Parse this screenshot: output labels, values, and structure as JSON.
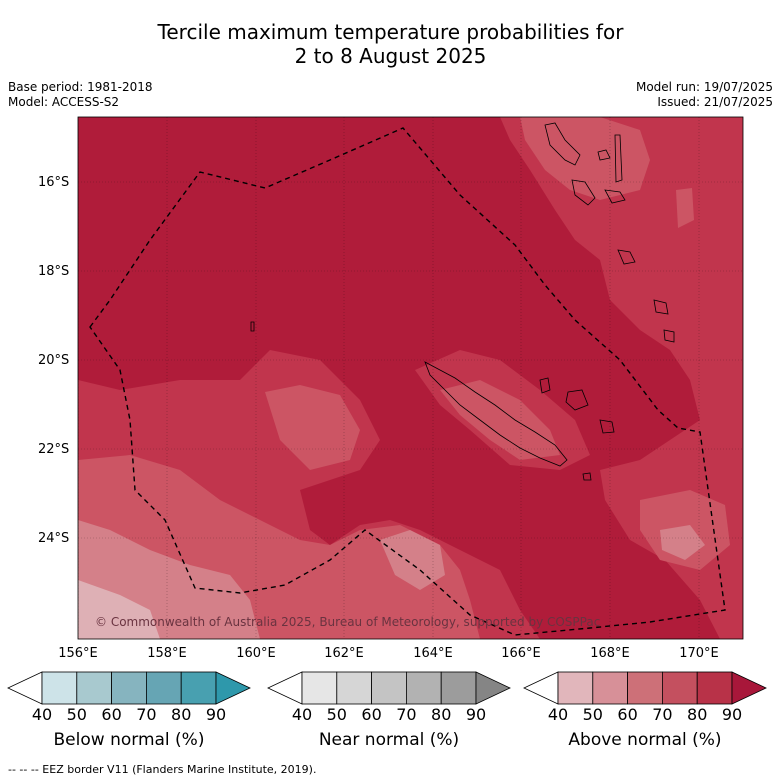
{
  "title": {
    "line1": "Tercile maximum temperature probabilities for",
    "line2": "2 to 8 August 2025"
  },
  "meta_left": {
    "base_period": "Base period: 1981-2018",
    "model": "Model: ACCESS-S2"
  },
  "meta_right": {
    "model_run": "Model run: 19/07/2025",
    "issued": "Issued: 21/07/2025"
  },
  "map": {
    "lat_labels": [
      "16°S",
      "18°S",
      "20°S",
      "22°S",
      "24°S"
    ],
    "lon_labels": [
      "156°E",
      "158°E",
      "160°E",
      "162°E",
      "164°E",
      "166°E",
      "168°E",
      "170°E"
    ],
    "copyright": "© Commonwealth of Australia 2025, Bureau of Meteorology, supported by COSPPac",
    "colors": {
      "above_80_90": "#b01c3a",
      "above_70_80": "#c1354d",
      "above_60_70": "#cc5564",
      "above_50_60": "#d48089",
      "above_40_50": "#deb0b5"
    }
  },
  "colorbars": [
    {
      "title": "Below normal (%)",
      "ticks": [
        "40",
        "50",
        "60",
        "70",
        "80",
        "90"
      ],
      "colors": [
        "#cde3e8",
        "#a8c9cf",
        "#86b4bf",
        "#66a5b4",
        "#48a0b0",
        "#2e98ab"
      ]
    },
    {
      "title": "Near normal (%)",
      "ticks": [
        "40",
        "50",
        "60",
        "70",
        "80",
        "90"
      ],
      "colors": [
        "#e6e6e6",
        "#d6d6d6",
        "#c4c4c4",
        "#b2b2b2",
        "#9c9c9c",
        "#858585"
      ]
    },
    {
      "title": "Above normal (%)",
      "ticks": [
        "40",
        "50",
        "60",
        "70",
        "80",
        "90"
      ],
      "colors": [
        "#e1b6bb",
        "#d79098",
        "#cd7078",
        "#c4505f",
        "#b83248",
        "#a8173a"
      ]
    }
  ],
  "legend_note": "-- -- -- EEZ border V11 (Flanders Marine Institute, 2019)."
}
